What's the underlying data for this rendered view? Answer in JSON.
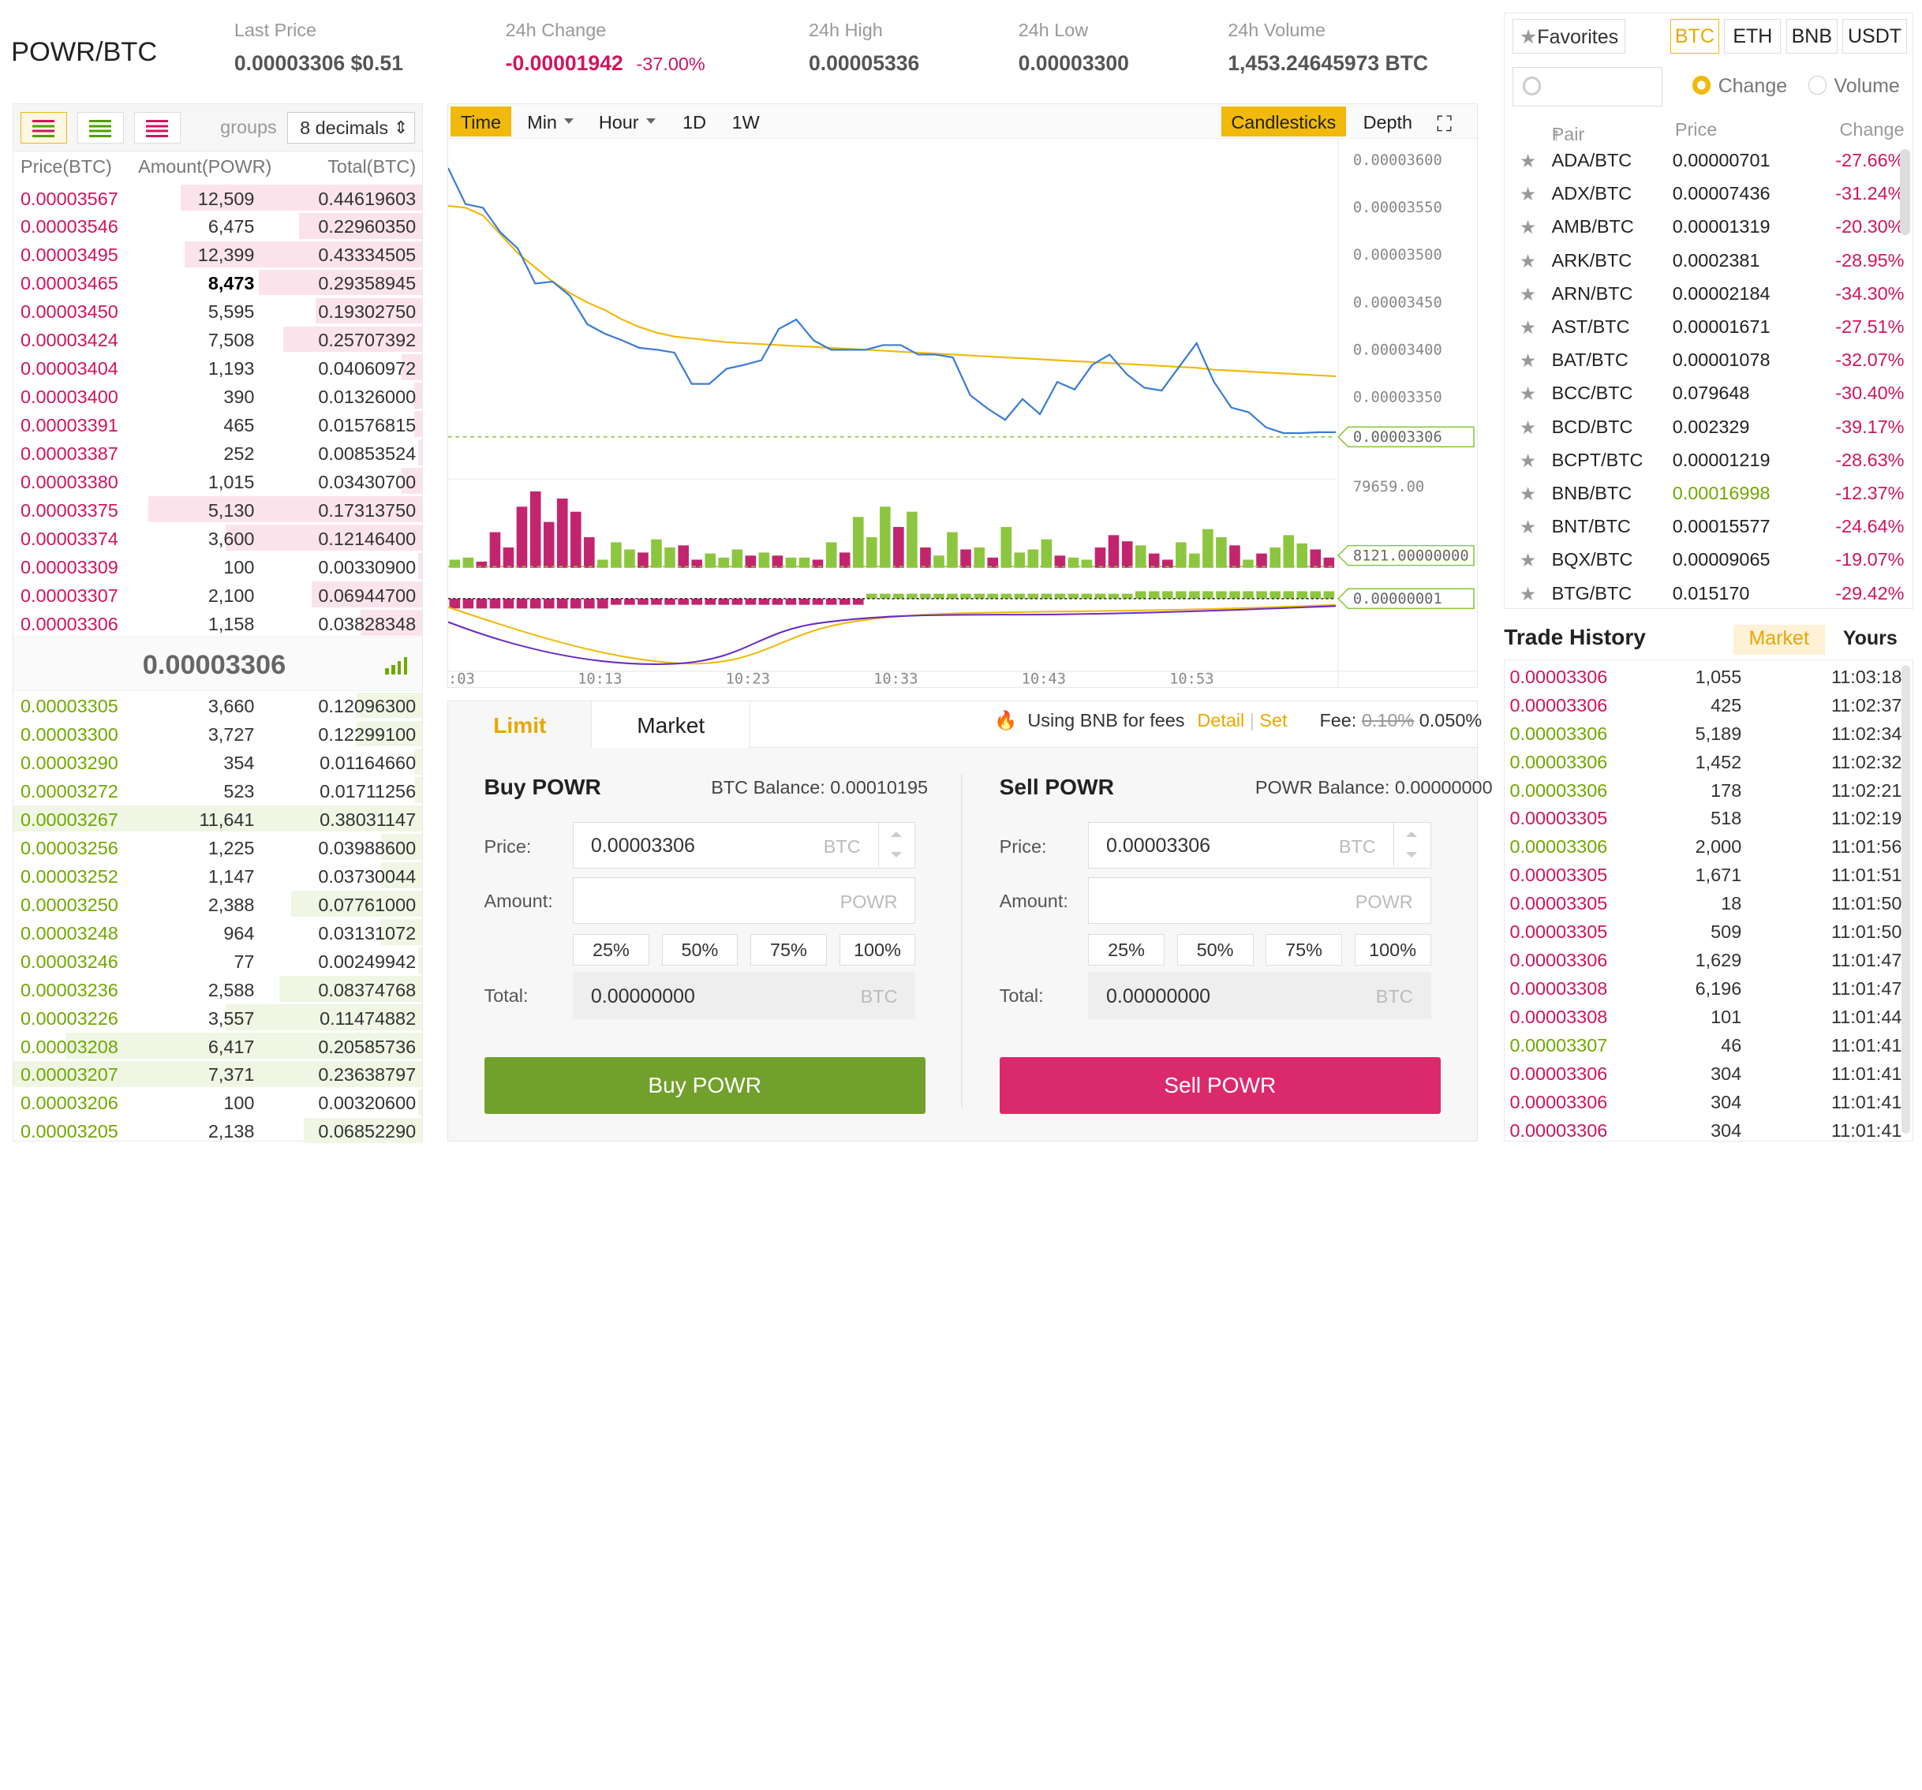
{
  "header": {
    "pair": "POWR/BTC",
    "last_price_label": "Last Price",
    "last_price": "0.00003306 $0.51",
    "change_label": "24h Change",
    "change_value": "-0.00001942",
    "change_pct": "-37.00%",
    "high_label": "24h High",
    "high": "0.00005336",
    "low_label": "24h Low",
    "low": "0.00003300",
    "volume_label": "24h Volume",
    "volume": "1,453.24645973 BTC"
  },
  "orderbook": {
    "groups_label": "groups",
    "decimals": "8 decimals",
    "col_price": "Price(BTC)",
    "col_amount": "Amount(POWR)",
    "col_total": "Total(BTC)",
    "last_price": "0.00003306",
    "asks": [
      {
        "price": "0.00003567",
        "amount": "12,509",
        "total": "0.44619603",
        "depth": 0.59
      },
      {
        "price": "0.00003546",
        "amount": "6,475",
        "total": "0.22960350",
        "depth": 0.3
      },
      {
        "price": "0.00003495",
        "amount": "12,399",
        "total": "0.43334505",
        "depth": 0.58
      },
      {
        "price": "0.00003465",
        "amount": "8,473",
        "total": "0.29358945",
        "depth": 0.4
      },
      {
        "price": "0.00003450",
        "amount": "5,595",
        "total": "0.19302750",
        "depth": 0.26
      },
      {
        "price": "0.00003424",
        "amount": "7,508",
        "total": "0.25707392",
        "depth": 0.34
      },
      {
        "price": "0.00003404",
        "amount": "1,193",
        "total": "0.04060972",
        "depth": 0.05
      },
      {
        "price": "0.00003400",
        "amount": "390",
        "total": "0.01326000",
        "depth": 0.02
      },
      {
        "price": "0.00003391",
        "amount": "465",
        "total": "0.01576815",
        "depth": 0.02
      },
      {
        "price": "0.00003387",
        "amount": "252",
        "total": "0.00853524",
        "depth": 0.01
      },
      {
        "price": "0.00003380",
        "amount": "1,015",
        "total": "0.03430700",
        "depth": 0.05
      },
      {
        "price": "0.00003375",
        "amount": "5,130",
        "total": "0.17313750",
        "depth": 0.67
      },
      {
        "price": "0.00003374",
        "amount": "3,600",
        "total": "0.12146400",
        "depth": 0.48
      },
      {
        "price": "0.00003309",
        "amount": "100",
        "total": "0.00330900",
        "depth": 0.01
      },
      {
        "price": "0.00003307",
        "amount": "2,100",
        "total": "0.06944700",
        "depth": 0.27
      },
      {
        "price": "0.00003306",
        "amount": "1,158",
        "total": "0.03828348",
        "depth": 0.15
      }
    ],
    "bids": [
      {
        "price": "0.00003305",
        "amount": "3,660",
        "total": "0.12096300",
        "depth": 0.16
      },
      {
        "price": "0.00003300",
        "amount": "3,727",
        "total": "0.12299100",
        "depth": 0.16
      },
      {
        "price": "0.00003290",
        "amount": "354",
        "total": "0.01164660",
        "depth": 0.02
      },
      {
        "price": "0.00003272",
        "amount": "523",
        "total": "0.01711256",
        "depth": 0.02
      },
      {
        "price": "0.00003267",
        "amount": "11,641",
        "total": "0.38031147",
        "depth": 1.0
      },
      {
        "price": "0.00003256",
        "amount": "1,225",
        "total": "0.03988600",
        "depth": 0.1
      },
      {
        "price": "0.00003252",
        "amount": "1,147",
        "total": "0.03730044",
        "depth": 0.1
      },
      {
        "price": "0.00003250",
        "amount": "2,388",
        "total": "0.07761000",
        "depth": 0.32
      },
      {
        "price": "0.00003248",
        "amount": "964",
        "total": "0.03131072",
        "depth": 0.1
      },
      {
        "price": "0.00003246",
        "amount": "77",
        "total": "0.00249942",
        "depth": 0.01
      },
      {
        "price": "0.00003236",
        "amount": "2,588",
        "total": "0.08374768",
        "depth": 0.35
      },
      {
        "price": "0.00003226",
        "amount": "3,557",
        "total": "0.11474882",
        "depth": 0.48
      },
      {
        "price": "0.00003208",
        "amount": "6,417",
        "total": "0.20585736",
        "depth": 0.87
      },
      {
        "price": "0.00003207",
        "amount": "7,371",
        "total": "0.23638797",
        "depth": 1.0
      },
      {
        "price": "0.00003206",
        "amount": "100",
        "total": "0.00320600",
        "depth": 0.01
      },
      {
        "price": "0.00003205",
        "amount": "2,138",
        "total": "0.06852290",
        "depth": 0.29
      }
    ]
  },
  "chart": {
    "tabs": {
      "time": "Time",
      "min": "Min",
      "hour": "Hour",
      "d1": "1D",
      "w1": "1W",
      "candles": "Candlesticks",
      "depth": "Depth"
    },
    "price_axis": [
      "0.00003600",
      "0.00003550",
      "0.00003500",
      "0.00003450",
      "0.00003400",
      "0.00003350"
    ],
    "last_price_tag": "0.00003306",
    "volume_max_label": "79659.00",
    "volume_tag": "8121.00000000",
    "macd_tag": "0.00000001",
    "time_axis": [
      ":03",
      "10:13",
      "10:23",
      "10:33",
      "10:43",
      "10:53"
    ],
    "colors": {
      "price": "#3a7bd5",
      "ma": "#f0b90b",
      "up": "#8cc63f",
      "down": "#c2256e",
      "macd_line": "#6a2bc4"
    },
    "price_series": [
      3590,
      3552,
      3548,
      3522,
      3505,
      3468,
      3470,
      3455,
      3425,
      3415,
      3408,
      3400,
      3398,
      3395,
      3362,
      3362,
      3378,
      3382,
      3387,
      3420,
      3430,
      3408,
      3398,
      3398,
      3398,
      3403,
      3403,
      3393,
      3393,
      3390,
      3350,
      3336,
      3324,
      3346,
      3330,
      3364,
      3356,
      3382,
      3393,
      3372,
      3358,
      3355,
      3380,
      3405,
      3364,
      3337,
      3332,
      3316,
      3310,
      3310,
      3311,
      3311
    ],
    "ma_series": [
      3550,
      3548,
      3540,
      3520,
      3500,
      3485,
      3470,
      3458,
      3448,
      3440,
      3430,
      3422,
      3416,
      3412,
      3410,
      3408,
      3406,
      3405,
      3404,
      3403,
      3402,
      3401,
      3400,
      3399,
      3398,
      3397,
      3396,
      3395,
      3394,
      3393,
      3392,
      3391,
      3390,
      3389,
      3388,
      3387,
      3386,
      3385,
      3384,
      3383,
      3382,
      3381,
      3380,
      3379,
      3377,
      3376,
      3375,
      3374,
      3373,
      3372,
      3371,
      3370
    ],
    "volume_series": [
      8,
      10,
      6,
      35,
      20,
      60,
      75,
      45,
      68,
      55,
      30,
      8,
      25,
      18,
      15,
      28,
      20,
      22,
      8,
      14,
      10,
      18,
      12,
      15,
      12,
      10,
      10,
      8,
      25,
      15,
      50,
      30,
      60,
      40,
      55,
      20,
      12,
      35,
      18,
      20,
      10,
      40,
      15,
      18,
      28,
      12,
      10,
      8,
      20,
      32,
      26,
      22,
      14,
      8,
      25,
      14,
      38,
      30,
      22,
      8,
      14,
      20,
      32,
      24,
      18,
      10
    ],
    "volume_up": [
      1,
      1,
      0,
      0,
      0,
      0,
      0,
      0,
      0,
      0,
      0,
      1,
      1,
      1,
      0,
      1,
      1,
      0,
      0,
      1,
      1,
      1,
      0,
      1,
      0,
      1,
      1,
      0,
      1,
      0,
      1,
      1,
      1,
      0,
      1,
      0,
      1,
      1,
      0,
      1,
      0,
      1,
      1,
      1,
      1,
      0,
      1,
      1,
      0,
      0,
      0,
      1,
      0,
      0,
      1,
      1,
      1,
      1,
      0,
      1,
      0,
      1,
      1,
      1,
      0,
      0
    ]
  },
  "trade": {
    "tab_limit": "Limit",
    "tab_market": "Market",
    "bnb_text": "Using BNB for fees",
    "detail": "Detail",
    "sep": "|",
    "set": "Set",
    "fee_label": "Fee:",
    "fee_old": "0.10%",
    "fee_new": "0.050%",
    "buy": {
      "title": "Buy POWR",
      "balance": "BTC Balance: 0.00010195",
      "price_label": "Price:",
      "price_value": "0.00003306",
      "price_unit": "BTC",
      "amount_label": "Amount:",
      "amount_unit": "POWR",
      "total_label": "Total:",
      "total_value": "0.00000000",
      "total_unit": "BTC",
      "button": "Buy POWR"
    },
    "sell": {
      "title": "Sell POWR",
      "balance": "POWR Balance: 0.00000000",
      "price_label": "Price:",
      "price_value": "0.00003306",
      "price_unit": "BTC",
      "amount_label": "Amount:",
      "amount_unit": "POWR",
      "total_label": "Total:",
      "total_value": "0.00000000",
      "total_unit": "BTC",
      "button": "Sell POWR"
    },
    "pcts": [
      "25%",
      "50%",
      "75%",
      "100%"
    ]
  },
  "pairs": {
    "favorites": "Favorites",
    "markets": [
      "BTC",
      "ETH",
      "BNB",
      "USDT"
    ],
    "change_label": "Change",
    "volume_label": "Volume",
    "col_pair": "Pair",
    "col_price": "Price",
    "col_change": "Change",
    "rows": [
      {
        "pair": "ADA/BTC",
        "price": "0.00000701",
        "change": "-27.66%"
      },
      {
        "pair": "ADX/BTC",
        "price": "0.00007436",
        "change": "-31.24%"
      },
      {
        "pair": "AMB/BTC",
        "price": "0.00001319",
        "change": "-20.30%"
      },
      {
        "pair": "ARK/BTC",
        "price": "0.0002381",
        "change": "-28.95%"
      },
      {
        "pair": "ARN/BTC",
        "price": "0.00002184",
        "change": "-34.30%"
      },
      {
        "pair": "AST/BTC",
        "price": "0.00001671",
        "change": "-27.51%"
      },
      {
        "pair": "BAT/BTC",
        "price": "0.00001078",
        "change": "-32.07%"
      },
      {
        "pair": "BCC/BTC",
        "price": "0.079648",
        "change": "-30.40%"
      },
      {
        "pair": "BCD/BTC",
        "price": "0.002329",
        "change": "-39.17%"
      },
      {
        "pair": "BCPT/BTC",
        "price": "0.00001219",
        "change": "-28.63%"
      },
      {
        "pair": "BNB/BTC",
        "price": "0.00016998",
        "change": "-12.37%",
        "up": true
      },
      {
        "pair": "BNT/BTC",
        "price": "0.00015577",
        "change": "-24.64%"
      },
      {
        "pair": "BQX/BTC",
        "price": "0.00009065",
        "change": "-19.07%"
      },
      {
        "pair": "BTG/BTC",
        "price": "0.015170",
        "change": "-29.42%"
      }
    ]
  },
  "history": {
    "title": "Trade History",
    "tab_market": "Market",
    "tab_yours": "Yours",
    "rows": [
      {
        "price": "0.00003306",
        "amount": "1,055",
        "time": "11:03:18",
        "side": "sell"
      },
      {
        "price": "0.00003306",
        "amount": "425",
        "time": "11:02:37",
        "side": "sell"
      },
      {
        "price": "0.00003306",
        "amount": "5,189",
        "time": "11:02:34",
        "side": "buy"
      },
      {
        "price": "0.00003306",
        "amount": "1,452",
        "time": "11:02:32",
        "side": "buy"
      },
      {
        "price": "0.00003306",
        "amount": "178",
        "time": "11:02:21",
        "side": "buy"
      },
      {
        "price": "0.00003305",
        "amount": "518",
        "time": "11:02:19",
        "side": "sell"
      },
      {
        "price": "0.00003306",
        "amount": "2,000",
        "time": "11:01:56",
        "side": "buy"
      },
      {
        "price": "0.00003305",
        "amount": "1,671",
        "time": "11:01:51",
        "side": "sell"
      },
      {
        "price": "0.00003305",
        "amount": "18",
        "time": "11:01:50",
        "side": "sell"
      },
      {
        "price": "0.00003305",
        "amount": "509",
        "time": "11:01:50",
        "side": "sell"
      },
      {
        "price": "0.00003306",
        "amount": "1,629",
        "time": "11:01:47",
        "side": "sell"
      },
      {
        "price": "0.00003308",
        "amount": "6,196",
        "time": "11:01:47",
        "side": "sell"
      },
      {
        "price": "0.00003308",
        "amount": "101",
        "time": "11:01:44",
        "side": "sell"
      },
      {
        "price": "0.00003307",
        "amount": "46",
        "time": "11:01:41",
        "side": "buy"
      },
      {
        "price": "0.00003306",
        "amount": "304",
        "time": "11:01:41",
        "side": "sell"
      },
      {
        "price": "0.00003306",
        "amount": "304",
        "time": "11:01:41",
        "side": "sell"
      },
      {
        "price": "0.00003306",
        "amount": "304",
        "time": "11:01:41",
        "side": "sell"
      }
    ]
  }
}
